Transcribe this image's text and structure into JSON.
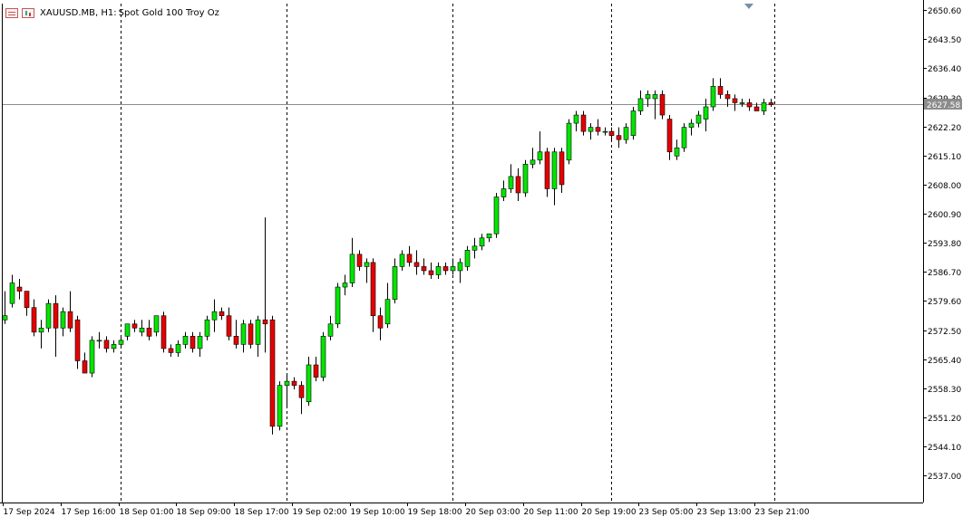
{
  "header": {
    "symbol_label": "XAUUSD.MB, H1:",
    "description": "Spot Gold 100 Troy Oz"
  },
  "colors": {
    "up": "#00e600",
    "down": "#e60000",
    "wick": "#000000",
    "grid": "#000000",
    "price_line": "#8c8c8c",
    "price_tag": "#8c8c8c"
  },
  "icons": [
    "chart-window-icon",
    "candles-icon",
    "scroll-marker-icon"
  ],
  "chart_data": {
    "type": "candlestick",
    "y_ticks": [
      "2650.60",
      "2643.50",
      "2636.40",
      "2629.30",
      "2622.20",
      "2615.10",
      "2608.00",
      "2600.90",
      "2593.80",
      "2586.70",
      "2579.60",
      "2572.50",
      "2565.40",
      "2558.30",
      "2551.20",
      "2544.10",
      "2537.00"
    ],
    "ylim": [
      2530.4,
      2652.2
    ],
    "x_ticks": [
      "17 Sep 2024",
      "17 Sep 16:00",
      "18 Sep 01:00",
      "18 Sep 09:00",
      "18 Sep 17:00",
      "19 Sep 02:00",
      "19 Sep 10:00",
      "19 Sep 18:00",
      "20 Sep 03:00",
      "20 Sep 11:00",
      "20 Sep 19:00",
      "23 Sep 05:00",
      "23 Sep 13:00",
      "23 Sep 21:00"
    ],
    "x_tick_index": [
      0,
      8,
      16,
      24,
      32,
      40,
      48,
      56,
      64,
      72,
      80,
      88,
      96,
      104
    ],
    "day_separators_index": [
      16,
      39,
      62,
      84,
      106.5
    ],
    "current_price": 2627.58,
    "candles": [
      {
        "o": 2575.0,
        "h": 2582.0,
        "l": 2574.0,
        "c": 2576.0
      },
      {
        "o": 2579.0,
        "h": 2586.0,
        "l": 2578.0,
        "c": 2584.0
      },
      {
        "o": 2583.0,
        "h": 2585.0,
        "l": 2580.0,
        "c": 2582.0
      },
      {
        "o": 2582.0,
        "h": 2582.0,
        "l": 2576.0,
        "c": 2578.0
      },
      {
        "o": 2578.0,
        "h": 2580.0,
        "l": 2571.0,
        "c": 2572.0
      },
      {
        "o": 2572.0,
        "h": 2575.0,
        "l": 2568.0,
        "c": 2573.0
      },
      {
        "o": 2573.0,
        "h": 2580.0,
        "l": 2572.0,
        "c": 2579.0
      },
      {
        "o": 2579.0,
        "h": 2581.0,
        "l": 2566.0,
        "c": 2573.0
      },
      {
        "o": 2573.0,
        "h": 2578.0,
        "l": 2571.0,
        "c": 2577.0
      },
      {
        "o": 2577.0,
        "h": 2582.0,
        "l": 2572.0,
        "c": 2573.0
      },
      {
        "o": 2575.0,
        "h": 2576.0,
        "l": 2563.0,
        "c": 2565.0
      },
      {
        "o": 2565.0,
        "h": 2567.0,
        "l": 2562.0,
        "c": 2562.0
      },
      {
        "o": 2562.0,
        "h": 2571.0,
        "l": 2561.0,
        "c": 2570.0
      },
      {
        "o": 2570.0,
        "h": 2572.0,
        "l": 2568.0,
        "c": 2570.0
      },
      {
        "o": 2570.0,
        "h": 2571.0,
        "l": 2567.0,
        "c": 2568.0
      },
      {
        "o": 2568.0,
        "h": 2570.0,
        "l": 2567.0,
        "c": 2569.0
      },
      {
        "o": 2569.0,
        "h": 2571.0,
        "l": 2568.0,
        "c": 2570.0
      },
      {
        "o": 2571.0,
        "h": 2574.0,
        "l": 2570.0,
        "c": 2574.0
      },
      {
        "o": 2574.0,
        "h": 2575.0,
        "l": 2572.0,
        "c": 2573.0
      },
      {
        "o": 2572.0,
        "h": 2575.0,
        "l": 2571.0,
        "c": 2573.0
      },
      {
        "o": 2573.0,
        "h": 2575.0,
        "l": 2570.0,
        "c": 2571.0
      },
      {
        "o": 2572.0,
        "h": 2576.0,
        "l": 2571.0,
        "c": 2576.0
      },
      {
        "o": 2576.0,
        "h": 2577.0,
        "l": 2567.0,
        "c": 2568.0
      },
      {
        "o": 2568.0,
        "h": 2569.0,
        "l": 2566.0,
        "c": 2567.0
      },
      {
        "o": 2567.0,
        "h": 2570.0,
        "l": 2566.0,
        "c": 2569.0
      },
      {
        "o": 2569.0,
        "h": 2572.0,
        "l": 2568.0,
        "c": 2571.0
      },
      {
        "o": 2571.0,
        "h": 2572.0,
        "l": 2567.0,
        "c": 2568.0
      },
      {
        "o": 2568.0,
        "h": 2572.0,
        "l": 2566.0,
        "c": 2571.0
      },
      {
        "o": 2571.0,
        "h": 2576.0,
        "l": 2570.0,
        "c": 2575.0
      },
      {
        "o": 2575.0,
        "h": 2580.0,
        "l": 2572.0,
        "c": 2577.0
      },
      {
        "o": 2577.0,
        "h": 2578.0,
        "l": 2575.0,
        "c": 2576.0
      },
      {
        "o": 2576.0,
        "h": 2578.0,
        "l": 2570.0,
        "c": 2571.0
      },
      {
        "o": 2571.0,
        "h": 2575.0,
        "l": 2568.0,
        "c": 2569.0
      },
      {
        "o": 2569.0,
        "h": 2575.0,
        "l": 2567.0,
        "c": 2574.0
      },
      {
        "o": 2574.0,
        "h": 2575.0,
        "l": 2568.0,
        "c": 2569.0
      },
      {
        "o": 2569.0,
        "h": 2576.0,
        "l": 2566.0,
        "c": 2575.0
      },
      {
        "o": 2575.0,
        "h": 2600.0,
        "l": 2567.0,
        "c": 2574.0
      },
      {
        "o": 2575.0,
        "h": 2576.0,
        "l": 2547.0,
        "c": 2549.0
      },
      {
        "o": 2549.0,
        "h": 2560.0,
        "l": 2548.0,
        "c": 2559.0
      },
      {
        "o": 2559.0,
        "h": 2562.0,
        "l": 2554.0,
        "c": 2560.0
      },
      {
        "o": 2560.0,
        "h": 2561.0,
        "l": 2558.0,
        "c": 2559.0
      },
      {
        "o": 2559.0,
        "h": 2560.0,
        "l": 2552.0,
        "c": 2556.0
      },
      {
        "o": 2555.0,
        "h": 2566.0,
        "l": 2554.0,
        "c": 2564.0
      },
      {
        "o": 2564.0,
        "h": 2566.0,
        "l": 2560.0,
        "c": 2561.0
      },
      {
        "o": 2561.0,
        "h": 2572.0,
        "l": 2560.0,
        "c": 2571.0
      },
      {
        "o": 2571.0,
        "h": 2576.0,
        "l": 2570.0,
        "c": 2574.0
      },
      {
        "o": 2574.0,
        "h": 2584.0,
        "l": 2573.0,
        "c": 2583.0
      },
      {
        "o": 2583.0,
        "h": 2586.0,
        "l": 2581.0,
        "c": 2584.0
      },
      {
        "o": 2584.0,
        "h": 2595.0,
        "l": 2583.0,
        "c": 2591.0
      },
      {
        "o": 2591.0,
        "h": 2592.0,
        "l": 2587.0,
        "c": 2588.0
      },
      {
        "o": 2588.0,
        "h": 2590.0,
        "l": 2584.0,
        "c": 2589.0
      },
      {
        "o": 2589.0,
        "h": 2590.0,
        "l": 2572.0,
        "c": 2576.0
      },
      {
        "o": 2576.0,
        "h": 2578.0,
        "l": 2570.0,
        "c": 2573.0
      },
      {
        "o": 2574.0,
        "h": 2584.0,
        "l": 2573.0,
        "c": 2580.0
      },
      {
        "o": 2580.0,
        "h": 2590.0,
        "l": 2579.0,
        "c": 2588.0
      },
      {
        "o": 2588.0,
        "h": 2592.0,
        "l": 2587.0,
        "c": 2591.0
      },
      {
        "o": 2591.0,
        "h": 2593.0,
        "l": 2588.0,
        "c": 2589.0
      },
      {
        "o": 2589.0,
        "h": 2592.0,
        "l": 2586.0,
        "c": 2588.0
      },
      {
        "o": 2588.0,
        "h": 2590.0,
        "l": 2586.0,
        "c": 2587.0
      },
      {
        "o": 2587.0,
        "h": 2589.0,
        "l": 2585.0,
        "c": 2586.0
      },
      {
        "o": 2586.0,
        "h": 2589.0,
        "l": 2585.0,
        "c": 2588.0
      },
      {
        "o": 2588.0,
        "h": 2589.0,
        "l": 2586.0,
        "c": 2587.0
      },
      {
        "o": 2587.0,
        "h": 2590.0,
        "l": 2586.0,
        "c": 2588.0
      },
      {
        "o": 2587.0,
        "h": 2590.0,
        "l": 2584.0,
        "c": 2589.0
      },
      {
        "o": 2588.0,
        "h": 2593.0,
        "l": 2587.0,
        "c": 2592.0
      },
      {
        "o": 2592.0,
        "h": 2595.0,
        "l": 2590.0,
        "c": 2593.0
      },
      {
        "o": 2593.0,
        "h": 2596.0,
        "l": 2592.0,
        "c": 2595.0
      },
      {
        "o": 2595.0,
        "h": 2596.0,
        "l": 2594.0,
        "c": 2596.0
      },
      {
        "o": 2596.0,
        "h": 2606.0,
        "l": 2595.0,
        "c": 2605.0
      },
      {
        "o": 2605.0,
        "h": 2609.0,
        "l": 2604.0,
        "c": 2607.0
      },
      {
        "o": 2607.0,
        "h": 2613.0,
        "l": 2606.0,
        "c": 2610.0
      },
      {
        "o": 2610.0,
        "h": 2612.0,
        "l": 2604.0,
        "c": 2606.0
      },
      {
        "o": 2606.0,
        "h": 2614.0,
        "l": 2605.0,
        "c": 2613.0
      },
      {
        "o": 2613.0,
        "h": 2617.0,
        "l": 2612.0,
        "c": 2614.0
      },
      {
        "o": 2614.0,
        "h": 2621.0,
        "l": 2613.0,
        "c": 2616.0
      },
      {
        "o": 2616.0,
        "h": 2617.0,
        "l": 2605.0,
        "c": 2607.0
      },
      {
        "o": 2607.0,
        "h": 2617.0,
        "l": 2603.0,
        "c": 2616.0
      },
      {
        "o": 2616.0,
        "h": 2617.0,
        "l": 2606.0,
        "c": 2608.0
      },
      {
        "o": 2614.0,
        "h": 2624.0,
        "l": 2613.0,
        "c": 2623.0
      },
      {
        "o": 2623.0,
        "h": 2626.0,
        "l": 2621.0,
        "c": 2625.0
      },
      {
        "o": 2625.0,
        "h": 2626.0,
        "l": 2620.0,
        "c": 2621.0
      },
      {
        "o": 2621.0,
        "h": 2623.0,
        "l": 2619.0,
        "c": 2622.0
      },
      {
        "o": 2622.0,
        "h": 2624.0,
        "l": 2620.0,
        "c": 2621.0
      },
      {
        "o": 2621.0,
        "h": 2622.0,
        "l": 2620.0,
        "c": 2621.0
      },
      {
        "o": 2621.0,
        "h": 2622.0,
        "l": 2619.0,
        "c": 2620.0
      },
      {
        "o": 2620.0,
        "h": 2622.0,
        "l": 2617.0,
        "c": 2619.0
      },
      {
        "o": 2619.0,
        "h": 2623.0,
        "l": 2618.0,
        "c": 2622.0
      },
      {
        "o": 2620.0,
        "h": 2627.0,
        "l": 2619.0,
        "c": 2626.0
      },
      {
        "o": 2626.0,
        "h": 2631.0,
        "l": 2625.0,
        "c": 2629.0
      },
      {
        "o": 2629.0,
        "h": 2631.0,
        "l": 2627.0,
        "c": 2630.0
      },
      {
        "o": 2629.0,
        "h": 2631.0,
        "l": 2624.0,
        "c": 2630.0
      },
      {
        "o": 2630.0,
        "h": 2631.0,
        "l": 2624.0,
        "c": 2625.0
      },
      {
        "o": 2624.0,
        "h": 2625.0,
        "l": 2614.0,
        "c": 2616.0
      },
      {
        "o": 2615.0,
        "h": 2619.0,
        "l": 2614.0,
        "c": 2617.0
      },
      {
        "o": 2617.0,
        "h": 2623.0,
        "l": 2616.0,
        "c": 2622.0
      },
      {
        "o": 2622.0,
        "h": 2624.0,
        "l": 2620.0,
        "c": 2623.0
      },
      {
        "o": 2623.0,
        "h": 2626.0,
        "l": 2622.0,
        "c": 2625.0
      },
      {
        "o": 2624.0,
        "h": 2629.0,
        "l": 2621.0,
        "c": 2627.0
      },
      {
        "o": 2627.0,
        "h": 2634.0,
        "l": 2626.0,
        "c": 2632.0
      },
      {
        "o": 2632.0,
        "h": 2634.0,
        "l": 2629.0,
        "c": 2630.0
      },
      {
        "o": 2630.0,
        "h": 2631.0,
        "l": 2627.0,
        "c": 2629.0
      },
      {
        "o": 2629.0,
        "h": 2630.0,
        "l": 2626.0,
        "c": 2628.0
      },
      {
        "o": 2628.0,
        "h": 2629.0,
        "l": 2627.0,
        "c": 2628.0
      },
      {
        "o": 2628.0,
        "h": 2629.0,
        "l": 2626.0,
        "c": 2627.0
      },
      {
        "o": 2627.0,
        "h": 2628.0,
        "l": 2626.0,
        "c": 2626.0
      },
      {
        "o": 2626.0,
        "h": 2629.0,
        "l": 2625.0,
        "c": 2628.0
      },
      {
        "o": 2628.0,
        "h": 2629.0,
        "l": 2627.0,
        "c": 2627.5
      }
    ]
  }
}
